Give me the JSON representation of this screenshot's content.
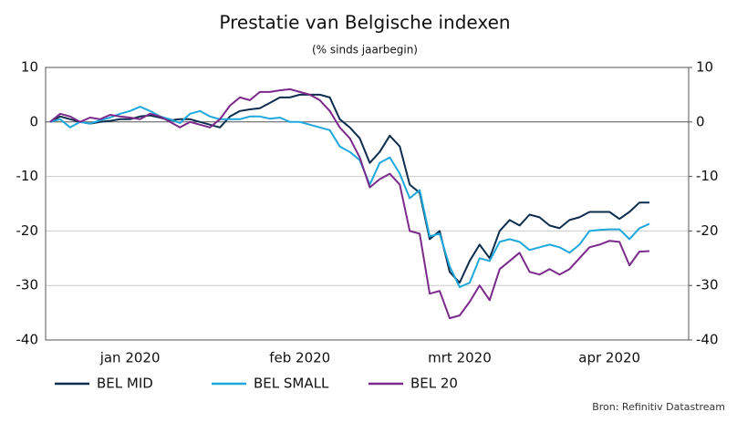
{
  "chart_data": {
    "type": "line",
    "title": "Prestatie van Belgische indexen",
    "subtitle": "(% sinds jaarbegin)",
    "source": "Bron: Refinitiv Datastream",
    "categories": [
      null,
      null,
      null,
      null,
      null,
      null,
      null,
      null,
      "jan 2020",
      null,
      null,
      null,
      null,
      null,
      null,
      null,
      null,
      null,
      null,
      null,
      null,
      null,
      null,
      null,
      null,
      "feb 2020",
      null,
      null,
      null,
      null,
      null,
      null,
      null,
      null,
      null,
      null,
      null,
      null,
      null,
      null,
      null,
      "mrt 2020",
      null,
      null,
      null,
      null,
      null,
      null,
      null,
      null,
      null,
      null,
      null,
      null,
      null,
      null,
      "apr 2020",
      null,
      null,
      null,
      null
    ],
    "series": [
      {
        "name": "BEL MID",
        "color": "#0d2d4f",
        "values": [
          0,
          1,
          0.5,
          0,
          -0.3,
          0,
          0.2,
          0.5,
          0.5,
          1,
          1.2,
          0.8,
          0.3,
          0.5,
          0.5,
          0,
          -0.5,
          -1,
          1,
          2,
          2.3,
          2.5,
          3.5,
          4.5,
          4.5,
          5,
          5,
          5,
          4.5,
          0.5,
          -1,
          -3,
          -7.5,
          -5.5,
          -2.5,
          -4.5,
          -11.5,
          -13,
          -21.5,
          -20,
          -27.5,
          -29.5,
          -25.5,
          -22.5,
          -25,
          -20,
          -18,
          -19,
          -17,
          -17.5,
          -19,
          -19.5,
          -18,
          -17.5,
          -16.5,
          -16.5,
          -16.5,
          -17.8,
          -16.5,
          -14.8,
          -14.8
        ]
      },
      {
        "name": "BEL SMALL",
        "color": "#1ea8dc",
        "values": [
          0,
          0.5,
          -1,
          0,
          -0.3,
          0.3,
          0.8,
          1.5,
          2,
          2.8,
          2,
          1,
          0.5,
          -0.2,
          1.5,
          2,
          1,
          0.5,
          0.5,
          0.5,
          1,
          1,
          0.6,
          0.8,
          0,
          0,
          -0.5,
          -1,
          -1.5,
          -4.5,
          -5.5,
          -7,
          -11.5,
          -7.5,
          -6.5,
          -9.5,
          -14,
          -12.5,
          -21,
          -20.5,
          -26.5,
          -30.3,
          -29.5,
          -25,
          -25.5,
          -22,
          -21.5,
          -22,
          -23.5,
          -23,
          -22.5,
          -23,
          -24,
          -22.5,
          -20,
          -19.8,
          -19.7,
          -19.7,
          -21.5,
          -19.5,
          -18.7
        ]
      },
      {
        "name": "BEL 20",
        "color": "#7b2a8c",
        "values": [
          0,
          1.5,
          1,
          0,
          0.8,
          0.5,
          1.3,
          1,
          0.8,
          0.5,
          1.5,
          1,
          0,
          -1,
          0,
          -0.5,
          -1,
          0.5,
          3,
          4.5,
          4,
          5.5,
          5.5,
          5.8,
          6,
          5.5,
          5,
          4,
          2,
          -1,
          -3,
          -6.5,
          -12,
          -10.5,
          -9.5,
          -11.5,
          -20,
          -20.5,
          -31.5,
          -31,
          -36,
          -35.5,
          -33,
          -30,
          -32.7,
          -27,
          -25.5,
          -24,
          -27.5,
          -28,
          -27,
          -28,
          -27,
          -25,
          -23,
          -22.5,
          -21.8,
          -22,
          -26.3,
          -23.8,
          -23.7
        ]
      }
    ],
    "ylim": [
      -40,
      10
    ],
    "yticks": [
      -40,
      -30,
      -20,
      -10,
      0,
      10
    ],
    "y2lim": [
      -40,
      10
    ],
    "y2ticks": [
      -40,
      -30,
      -20,
      -10,
      0,
      10
    ],
    "grid": true,
    "legend": "bottom"
  }
}
